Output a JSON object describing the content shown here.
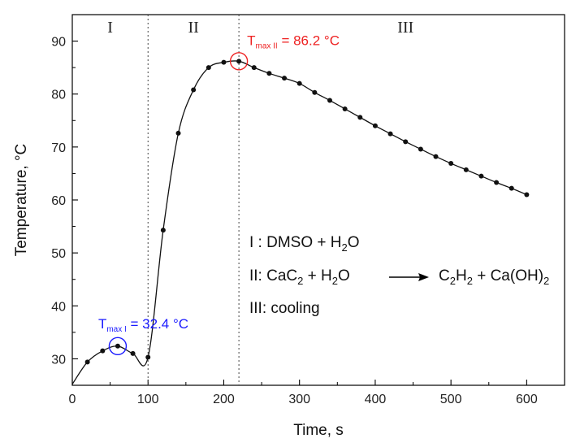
{
  "chart_data": {
    "type": "line",
    "xlabel": "Time, s",
    "ylabel": "Temperature, °C",
    "xlim": [
      0,
      650
    ],
    "ylim": [
      25,
      95
    ],
    "x_ticks": [
      0,
      100,
      200,
      300,
      400,
      500,
      600
    ],
    "y_ticks": [
      30,
      40,
      50,
      60,
      70,
      80,
      90
    ],
    "grid": false,
    "series": [
      {
        "x": [
          0,
          20,
          40,
          60,
          80,
          100,
          120,
          140,
          160,
          180,
          200,
          220,
          240,
          260,
          280,
          300,
          320,
          340,
          360,
          380,
          400,
          420,
          440,
          460,
          480,
          500,
          520,
          540,
          560,
          580,
          600
        ],
        "y": [
          25.2,
          29.4,
          31.5,
          32.4,
          31.0,
          30.3,
          54.3,
          72.6,
          80.8,
          85.0,
          86.0,
          86.2,
          85.0,
          83.9,
          83.0,
          82.0,
          80.3,
          78.8,
          77.2,
          75.6,
          74.0,
          72.5,
          71.0,
          69.6,
          68.2,
          66.9,
          65.7,
          64.5,
          63.3,
          62.2,
          61.0
        ]
      }
    ],
    "dividers": [
      100,
      220
    ],
    "regions": [
      {
        "label": "I",
        "x": 50
      },
      {
        "label": "II",
        "x": 160
      },
      {
        "label": "III",
        "x": 440
      }
    ],
    "annotations": [
      {
        "base": "T",
        "sub": "max I",
        "value": " = 32.4 °C",
        "x": 60,
        "y": 32.4,
        "color": "#1a1aff"
      },
      {
        "base": "T",
        "sub": "max II",
        "value": " = 86.2 °C",
        "x": 220,
        "y": 86.2,
        "color": "#ee2222"
      }
    ],
    "legend": {
      "line1": "I : DMSO + H",
      "line1_sub": "2",
      "line1_end": "O",
      "line2_a": "II: CaC",
      "line2_sub1": "2",
      "line2_b": " + H",
      "line2_sub2": "2",
      "line2_c": "O",
      "line2_product_a": "C",
      "line2_product_sub1": "2",
      "line2_product_b": "H",
      "line2_product_sub2": "2",
      "line2_product_c": " + Ca(OH)",
      "line2_product_sub3": "2",
      "line3": "III: cooling"
    }
  }
}
